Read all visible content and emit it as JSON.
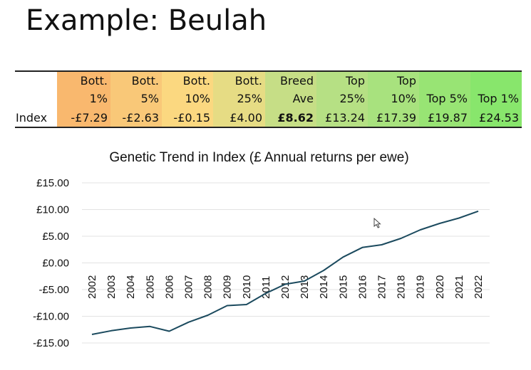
{
  "slide": {
    "title": "Example: Beulah"
  },
  "table": {
    "row_label": "Index",
    "columns": [
      {
        "line1": "Bott.",
        "line2": "1%",
        "value": "-£7.29",
        "color": "#f9b86e",
        "bold": false
      },
      {
        "line1": "Bott.",
        "line2": "5%",
        "value": "-£2.63",
        "color": "#f9c878",
        "bold": false
      },
      {
        "line1": "Bott.",
        "line2": "10%",
        "value": "-£0.15",
        "color": "#fbd880",
        "bold": false
      },
      {
        "line1": "Bott.",
        "line2": "25%",
        "value": "£4.00",
        "color": "#e6dc84",
        "bold": false
      },
      {
        "line1": "Breed",
        "line2": "Ave",
        "value": "£8.62",
        "color": "#c6de86",
        "bold": true
      },
      {
        "line1": "Top",
        "line2": "25%",
        "value": "£13.24",
        "color": "#b6e084",
        "bold": false
      },
      {
        "line1": "Top",
        "line2": "10%",
        "value": "£17.39",
        "color": "#a8e27e",
        "bold": false
      },
      {
        "line1": "",
        "line2": "Top 5%",
        "value": "£19.87",
        "color": "#98e474",
        "bold": false
      },
      {
        "line1": "",
        "line2": "Top 1%",
        "value": "£24.53",
        "color": "#88e66c",
        "bold": false
      }
    ]
  },
  "chart_data": {
    "type": "line",
    "title": "Genetic Trend in Index (£ Annual returns per ewe)",
    "xlabel": "",
    "ylabel": "",
    "ylim": [
      -15,
      15
    ],
    "yticks": [
      15,
      10,
      5,
      0,
      -5,
      -10,
      -15
    ],
    "ytick_labels": [
      "£15.00",
      "£10.00",
      "£5.00",
      "£0.00",
      "-£5.00",
      "-£10.00",
      "-£15.00"
    ],
    "grid": true,
    "line_color": "#1b4a5e",
    "categories": [
      "2002",
      "2003",
      "2004",
      "2005",
      "2006",
      "2007",
      "2008",
      "2009",
      "2010",
      "2011",
      "2012",
      "2013",
      "2014",
      "2015",
      "2016",
      "2017",
      "2018",
      "2019",
      "2020",
      "2021",
      "2022"
    ],
    "series": [
      {
        "values": [
          -13.4,
          -12.7,
          -12.2,
          -11.9,
          -12.8,
          -11.1,
          -9.8,
          -8.0,
          -7.8,
          -5.7,
          -4.0,
          -3.4,
          -1.4,
          1.1,
          2.9,
          3.4,
          4.6,
          6.2,
          7.4,
          8.4,
          9.7
        ]
      }
    ]
  },
  "cursor": {
    "icon": "mouse-pointer-icon"
  }
}
